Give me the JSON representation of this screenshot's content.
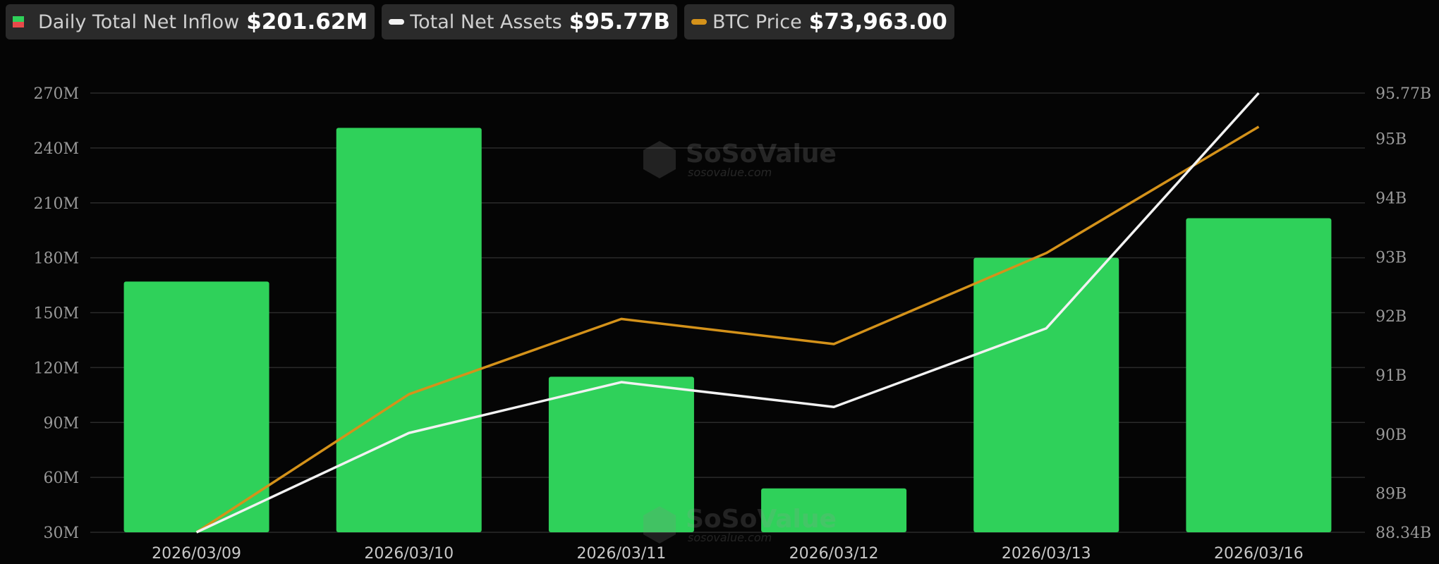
{
  "legend": {
    "inflow": {
      "label": "Daily Total Net Inflow",
      "value": "$201.62M",
      "color_up": "#2fd15a",
      "color_down": "#e84a4a"
    },
    "assets": {
      "label": "Total Net Assets",
      "value": "$95.77B",
      "color": "#f2f2f2"
    },
    "btc": {
      "label": "BTC Price",
      "value": "$73,963.00",
      "color": "#d4921a"
    }
  },
  "watermark": {
    "brand": "SoSoValue",
    "site": "sosovalue.com"
  },
  "colors": {
    "bar": "#2fd15a",
    "assets_line": "#f2f2f2",
    "btc_line": "#d4921a",
    "grid": "#2b2b2b",
    "axis_text": "#9a9a9a",
    "date_text": "#c8c8c8"
  },
  "chart_data": {
    "type": "bar",
    "categories": [
      "2026/03/09",
      "2026/03/10",
      "2026/03/11",
      "2026/03/12",
      "2026/03/13",
      "2026/03/16"
    ],
    "series": [
      {
        "name": "Daily Total Net Inflow",
        "type": "bar",
        "axis": "left",
        "values": [
          167,
          251,
          115,
          54,
          180,
          201.62
        ]
      },
      {
        "name": "Total Net Assets",
        "type": "line",
        "axis": "right",
        "values": [
          88.34,
          90.02,
          90.88,
          90.46,
          91.79,
          95.77
        ]
      },
      {
        "name": "BTC Price",
        "type": "line",
        "axis": "right_btc",
        "values": [
          67500,
          69700,
          70900,
          70500,
          71950,
          73963
        ]
      }
    ],
    "y_left": {
      "ticks": [
        "30M",
        "60M",
        "90M",
        "120M",
        "150M",
        "180M",
        "210M",
        "240M",
        "270M"
      ],
      "min": 30,
      "max": 270
    },
    "y_right": {
      "ticks": [
        {
          "v": 88.34,
          "label": "88.34B"
        },
        {
          "v": 89,
          "label": "89B"
        },
        {
          "v": 90,
          "label": "90B"
        },
        {
          "v": 91,
          "label": "91B"
        },
        {
          "v": 92,
          "label": "92B"
        },
        {
          "v": 93,
          "label": "93B"
        },
        {
          "v": 94,
          "label": "94B"
        },
        {
          "v": 95,
          "label": "95B"
        },
        {
          "v": 95.77,
          "label": "95.77B"
        }
      ],
      "min": 88.34,
      "max": 95.77
    },
    "btc_range": {
      "min": 67500,
      "max": 74500
    },
    "grid": true
  }
}
